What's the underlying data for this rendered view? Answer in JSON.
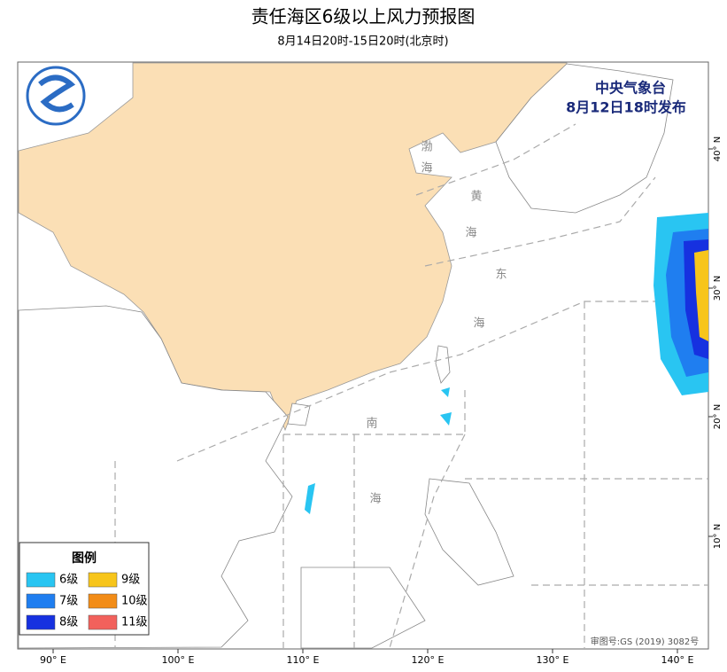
{
  "header": {
    "title": "责任海区6级以上风力预报图",
    "subtitle": "8月14日20时-15日20时(北京时)"
  },
  "issuer": {
    "name": "中央气象台",
    "time": "8月12日18时发布"
  },
  "map": {
    "sea_labels": [
      "渤",
      "海",
      "黄",
      "海",
      "东",
      "海",
      "南",
      "海"
    ],
    "lon_labels": [
      "90° E",
      "100° E",
      "110° E",
      "120° E",
      "130° E",
      "140° E"
    ],
    "lat_labels": [
      "40° N",
      "30° N",
      "20° N",
      "10° N"
    ],
    "approval": "审图号:GS (2019) 3082号"
  },
  "legend": {
    "title": "图例",
    "items": [
      {
        "label": "6级",
        "color": "#29c5f2"
      },
      {
        "label": "7级",
        "color": "#1f7ef0"
      },
      {
        "label": "8级",
        "color": "#1631e0"
      },
      {
        "label": "9级",
        "color": "#f7c51b"
      },
      {
        "label": "10级",
        "color": "#f28c17"
      },
      {
        "label": "11级",
        "color": "#f2615c"
      }
    ]
  }
}
